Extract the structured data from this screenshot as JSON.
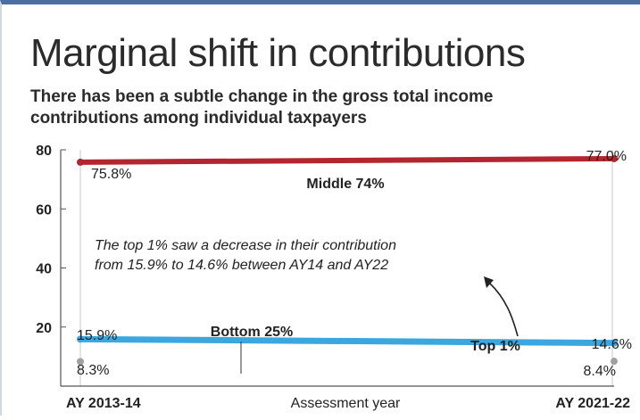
{
  "title": "Marginal shift in contributions",
  "subtitle": "There has been a subtle change in the gross total income contributions among individual taxpayers",
  "colors": {
    "middle": "#b32630",
    "top": "#3ba7de",
    "bottom": "#a0a0a0",
    "grid": "#c8c8c8",
    "frame": "#4a6fa5"
  },
  "chart_data": {
    "type": "line",
    "title": "Marginal shift in contributions",
    "xlabel": "Assessment year",
    "ylabel": "",
    "categories": [
      "AY 2013-14",
      "AY 2021-22"
    ],
    "ylim": [
      0,
      80
    ],
    "yticks": [
      20,
      40,
      60,
      80
    ],
    "grid": true,
    "series": [
      {
        "name": "Middle 74%",
        "values": [
          75.8,
          77.0
        ],
        "labels": [
          "75.8%",
          "77.0%"
        ],
        "color": "middle"
      },
      {
        "name": "Top 1%",
        "values": [
          15.9,
          14.6
        ],
        "labels": [
          "15.9%",
          "14.6%"
        ],
        "color": "top"
      },
      {
        "name": "Bottom 25%",
        "values": [
          8.3,
          8.4
        ],
        "labels": [
          "8.3%",
          "8.4%"
        ],
        "color": "bottom"
      }
    ],
    "annotation": {
      "lines": [
        "The top 1% saw a decrease in their contribution",
        "from 15.9% to 14.6% between AY14 and AY22"
      ]
    }
  }
}
